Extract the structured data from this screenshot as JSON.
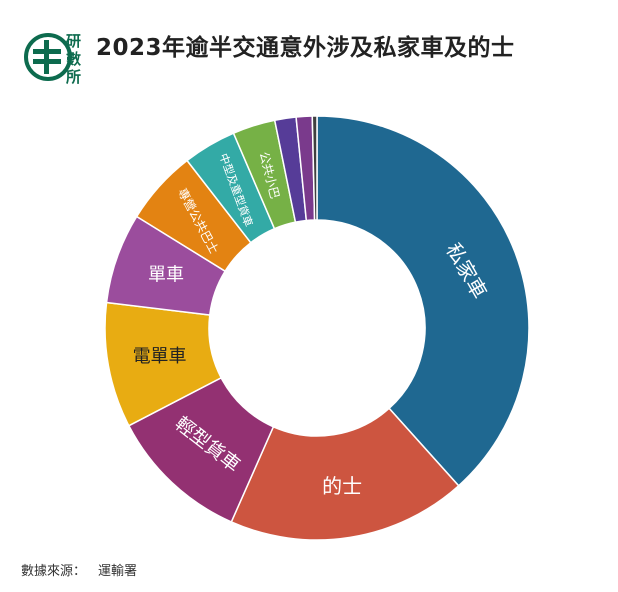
{
  "header": {
    "logo_text": [
      "研",
      "數",
      "所"
    ],
    "title": "2023年逾半交通意外涉及私家車及的士"
  },
  "footer": {
    "source_label": "數據來源：",
    "source_value": "運輸署"
  },
  "colors": {
    "logo_green": "#0d6b4e",
    "title_text": "#222222",
    "slice_border": "#ffffff"
  },
  "chart_data": {
    "type": "pie",
    "variant": "donut",
    "title": "2023年逾半交通意外涉及私家車及的士",
    "legend": "none",
    "slices": [
      {
        "label": "私家車",
        "value": 37.8,
        "color": "#1f6891"
      },
      {
        "label": "的士",
        "value": 18.0,
        "color": "#cd5540"
      },
      {
        "label": "輕型貨車",
        "value": 10.6,
        "color": "#933172"
      },
      {
        "label": "電單車",
        "value": 9.4,
        "color": "#e8ac12"
      },
      {
        "label": "單車",
        "value": 6.8,
        "color": "#9b4d9d"
      },
      {
        "label": "專營公共巴士",
        "value": 5.6,
        "color": "#e38312"
      },
      {
        "label": "中型及重型貨車",
        "value": 4.0,
        "color": "#33aaa6"
      },
      {
        "label": "公共小巴",
        "value": 3.2,
        "color": "#76b146"
      },
      {
        "label": "",
        "value": 1.6,
        "color": "#563c98"
      },
      {
        "label": "",
        "value": 1.2,
        "color": "#7a3a8c"
      },
      {
        "label": "",
        "value": 0.35,
        "color": "#3f3f3f"
      }
    ]
  }
}
